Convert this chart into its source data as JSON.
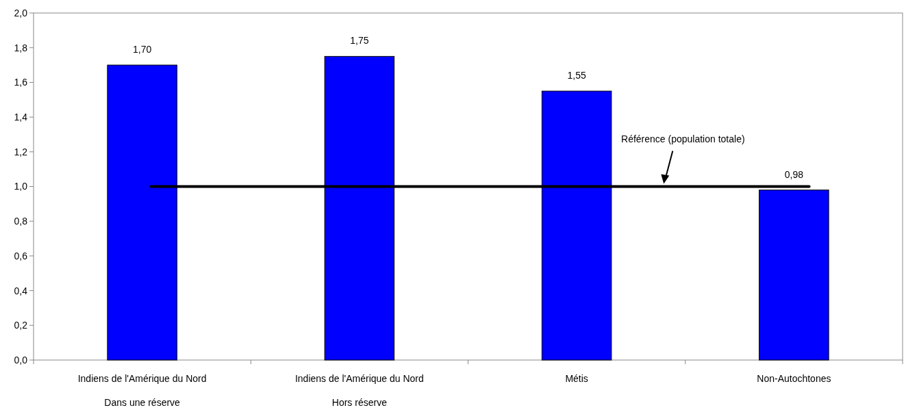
{
  "chart_data": {
    "type": "bar",
    "categories": [
      "Indiens de l'Amérique du Nord\nDans une réserve",
      "Indiens de l'Amérique du Nord\nHors réserve",
      "Métis",
      "Non-Autochtones"
    ],
    "values": [
      1.7,
      1.75,
      1.55,
      0.98
    ],
    "value_labels": [
      "1,70",
      "1,75",
      "1,55",
      "0,98"
    ],
    "color": "#0000ff",
    "ylim": [
      0,
      2
    ],
    "yticks": [
      {
        "value": 0,
        "label": "0,0"
      },
      {
        "value": 0.2,
        "label": "0,2"
      },
      {
        "value": 0.4,
        "label": "0,4"
      },
      {
        "value": 0.6,
        "label": "0,6"
      },
      {
        "value": 0.8,
        "label": "0,8"
      },
      {
        "value": 1,
        "label": "1,0"
      },
      {
        "value": 1.2,
        "label": "1,2"
      },
      {
        "value": 1.4,
        "label": "1,4"
      },
      {
        "value": 1.6,
        "label": "1,6"
      },
      {
        "value": 1.8,
        "label": "1,8"
      },
      {
        "value": 2,
        "label": "2,0"
      }
    ],
    "ref_lines": [
      {
        "axis": "y",
        "value": 1,
        "label": "Référence (population totale)",
        "color": "#000000"
      }
    ],
    "grid": false
  }
}
